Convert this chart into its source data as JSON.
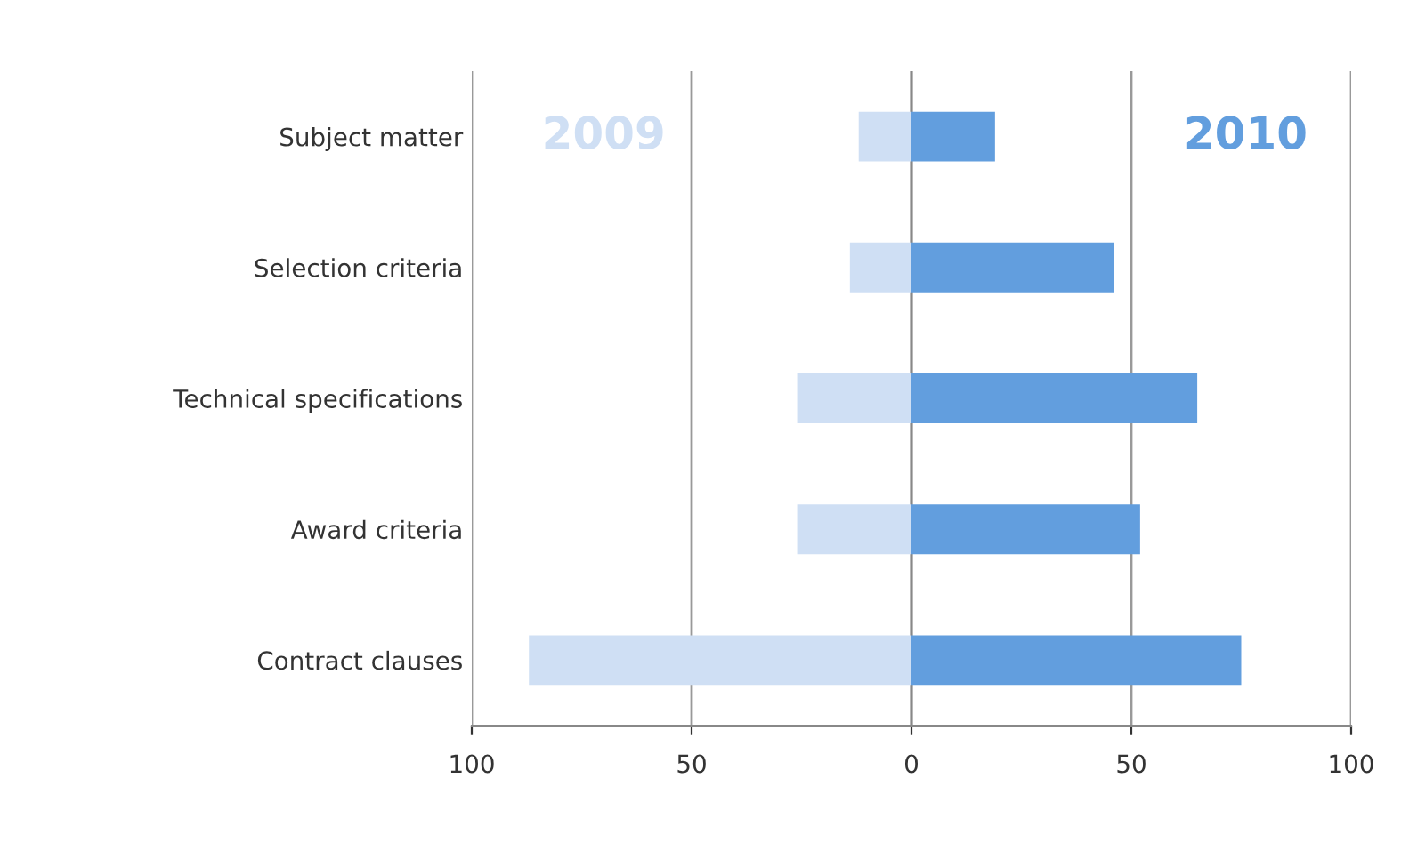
{
  "chart_data": {
    "type": "bar",
    "orientation": "horizontal",
    "stacked": true,
    "categories": [
      "Subject matter",
      "Selection criteria",
      "Technical specifications",
      "Award criteria",
      "Contract clauses"
    ],
    "series": [
      {
        "name": "2009",
        "color": "#cfdff4",
        "values": [
          -12,
          -14,
          -26,
          -26,
          -87
        ]
      },
      {
        "name": "2010",
        "color": "#629ede",
        "values": [
          19,
          46,
          65,
          52,
          75
        ]
      }
    ],
    "xlim": [
      -100,
      100
    ],
    "xticks": [
      {
        "value": -100,
        "label": "100"
      },
      {
        "value": -50,
        "label": "50"
      },
      0,
      50,
      100
    ],
    "grid": "x",
    "legend": false
  }
}
